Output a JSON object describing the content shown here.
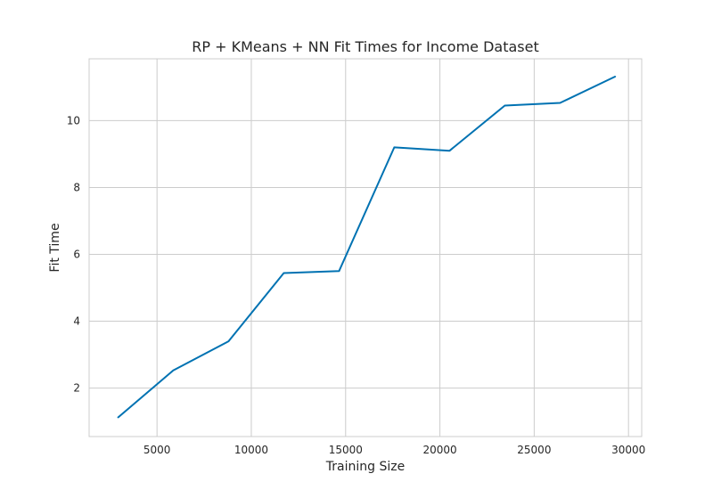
{
  "chart_data": {
    "type": "line",
    "title": "RP + KMeans + NN Fit Times for Income Dataset",
    "xlabel": "Training Size",
    "ylabel": "Fit Time",
    "xlim": [
      1400,
      30700
    ],
    "ylim": [
      0.55,
      11.85
    ],
    "xticks": [
      5000,
      10000,
      15000,
      20000,
      25000,
      30000
    ],
    "yticks": [
      2,
      4,
      6,
      8,
      10
    ],
    "grid": true,
    "series": [
      {
        "color": "#0072b2",
        "x": [
          2930,
          5860,
          8790,
          11720,
          14650,
          17580,
          20510,
          23440,
          26370,
          29300
        ],
        "y": [
          1.12,
          2.53,
          3.4,
          5.44,
          5.5,
          9.2,
          9.1,
          10.45,
          10.53,
          11.32
        ]
      }
    ]
  }
}
